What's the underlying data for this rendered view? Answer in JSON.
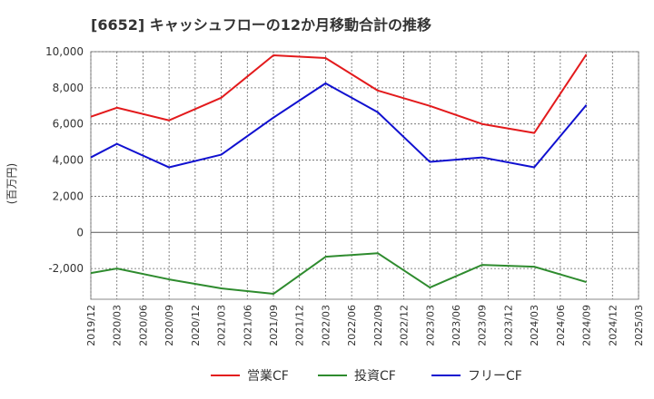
{
  "title": "[6652]  キャッシュフローの12か月移動合計の推移",
  "chart_data": {
    "type": "line",
    "title": "[6652]  キャッシュフローの12か月移動合計の推移",
    "ylabel": "(百万円)",
    "xlabel": "",
    "ylim": [
      -3700,
      10000
    ],
    "yticks": [
      -2000,
      0,
      2000,
      4000,
      6000,
      8000,
      10000
    ],
    "ytick_labels": [
      "-2,000",
      "0",
      "2,000",
      "4,000",
      "6,000",
      "8,000",
      "10,000"
    ],
    "xticks": [
      "2019/12",
      "2020/03",
      "2020/06",
      "2020/09",
      "2020/12",
      "2021/03",
      "2021/06",
      "2021/09",
      "2021/12",
      "2022/03",
      "2022/06",
      "2022/09",
      "2022/12",
      "2023/03",
      "2023/06",
      "2023/09",
      "2023/12",
      "2024/03",
      "2024/06",
      "2024/09",
      "2024/12",
      "2025/03"
    ],
    "grid": true,
    "legend_position": "bottom",
    "series": [
      {
        "name": "営業CF",
        "color": "#e31a1c",
        "points": [
          {
            "x": "2019/12",
            "y": 6400
          },
          {
            "x": "2020/03",
            "y": 6900
          },
          {
            "x": "2020/09",
            "y": 6200
          },
          {
            "x": "2021/03",
            "y": 7450
          },
          {
            "x": "2021/09",
            "y": 9800
          },
          {
            "x": "2022/03",
            "y": 9650
          },
          {
            "x": "2022/09",
            "y": 7850
          },
          {
            "x": "2023/03",
            "y": 7000
          },
          {
            "x": "2023/09",
            "y": 6000
          },
          {
            "x": "2024/03",
            "y": 5500
          },
          {
            "x": "2024/09",
            "y": 9850
          }
        ]
      },
      {
        "name": "投資CF",
        "color": "#2e8b2e",
        "points": [
          {
            "x": "2019/12",
            "y": -2250
          },
          {
            "x": "2020/03",
            "y": -2000
          },
          {
            "x": "2020/09",
            "y": -2600
          },
          {
            "x": "2021/03",
            "y": -3100
          },
          {
            "x": "2021/09",
            "y": -3400
          },
          {
            "x": "2022/03",
            "y": -1350
          },
          {
            "x": "2022/09",
            "y": -1150
          },
          {
            "x": "2023/03",
            "y": -3050
          },
          {
            "x": "2023/09",
            "y": -1800
          },
          {
            "x": "2024/03",
            "y": -1900
          },
          {
            "x": "2024/09",
            "y": -2750
          }
        ]
      },
      {
        "name": "フリーCF",
        "color": "#1010d0",
        "points": [
          {
            "x": "2019/12",
            "y": 4150
          },
          {
            "x": "2020/03",
            "y": 4900
          },
          {
            "x": "2020/09",
            "y": 3600
          },
          {
            "x": "2021/03",
            "y": 4300
          },
          {
            "x": "2021/09",
            "y": 6350
          },
          {
            "x": "2022/03",
            "y": 8250
          },
          {
            "x": "2022/09",
            "y": 6650
          },
          {
            "x": "2023/03",
            "y": 3900
          },
          {
            "x": "2023/09",
            "y": 4150
          },
          {
            "x": "2024/03",
            "y": 3600
          },
          {
            "x": "2024/09",
            "y": 7050
          }
        ]
      }
    ]
  }
}
